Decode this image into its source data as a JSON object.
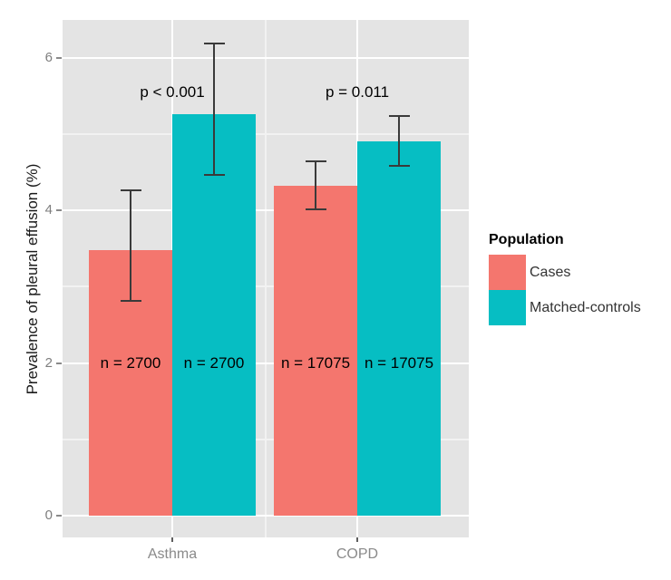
{
  "chart_data": {
    "type": "bar",
    "title": "",
    "xlabel": "",
    "ylabel": "Prevalence of pleural effusion (%)",
    "categories": [
      "Asthma",
      "COPD"
    ],
    "series": [
      {
        "name": "Cases",
        "color": "#F4766E",
        "values": [
          3.48,
          4.32
        ],
        "error_low": [
          2.82,
          4.02
        ],
        "error_high": [
          4.26,
          4.64
        ],
        "n_labels": [
          "n = 2700",
          "n = 17075"
        ]
      },
      {
        "name": "Matched-controls",
        "color": "#06BEC3",
        "values": [
          5.26,
          4.91
        ],
        "error_low": [
          4.46,
          4.58
        ],
        "error_high": [
          6.19,
          5.24
        ],
        "n_labels": [
          "n = 2700",
          "n = 17075"
        ]
      }
    ],
    "annotations": [
      {
        "text": "p < 0.001",
        "category_index": 0,
        "y": 5.55
      },
      {
        "text": "p = 0.011",
        "category_index": 1,
        "y": 5.55
      }
    ],
    "yticks": [
      0,
      2,
      4,
      6
    ],
    "minor_yticks": [
      1,
      3,
      5
    ],
    "ylim": [
      -0.29,
      6.5
    ],
    "grid": true,
    "n_label_y": 2,
    "legend": {
      "title": "Population",
      "entries": [
        "Cases",
        "Matched-controls"
      ],
      "position": "right"
    },
    "colors": {
      "panel_background": "#E4E4E4",
      "grid_major": "#FFFFFF",
      "grid_minor": "#F2F2F2",
      "error_bar": "#3A3A3A",
      "axis_text": "#7E7E7E",
      "axis_title": "#1A1A1A"
    }
  }
}
